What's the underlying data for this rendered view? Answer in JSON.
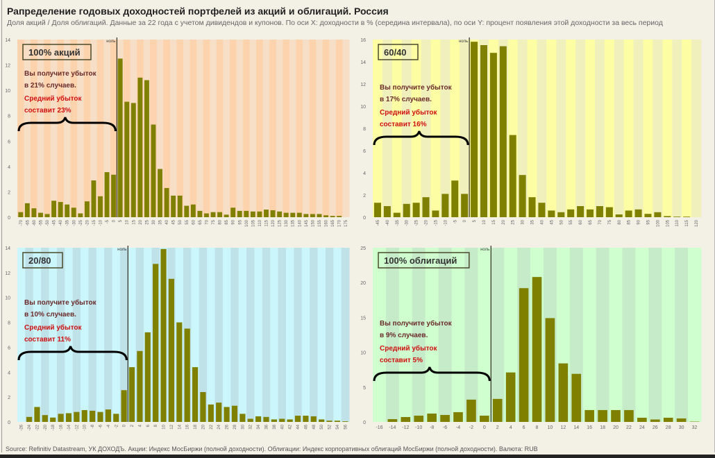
{
  "header": {
    "title": "Рапределение годовых доходностей портфелей из акций и облигаций. Россия",
    "subtitle": "Доля акций / Доля облигаций. Данные за 22 года с учетом дивидендов и купонов. По оси X: доходности в % (середина интервала), по оси Y: процент появления этой доходности за весь период"
  },
  "footer": {
    "source": "Source: Refinitiv Datastream, УК ДОХОДЪ. Акции: Индекс МосБиржи (полной доходности). Облигации: Индекс корпоративных облигаций МосБиржи (полной доходности). Валюта: RUB"
  },
  "colors": {
    "bar": "#808000",
    "zero_line": "#3a3a2a",
    "loss_text": "#6b2a2a",
    "avg_loss_text": "#d01010"
  },
  "chart_data": [
    {
      "type": "bar",
      "panel": "top-left",
      "title": "100% акций",
      "zero_label": "ноль",
      "note_loss": [
        "Вы получите убыток",
        "в 21% случаев."
      ],
      "note_avg": [
        "Средний убыток",
        "составит 23%"
      ],
      "background": [
        "#fcd3ac",
        "#f6dfc6"
      ],
      "ylim": [
        0,
        14
      ],
      "yticks": [
        0,
        2,
        4,
        6,
        8,
        10,
        12,
        14
      ],
      "x_rotated": true,
      "categories": [
        -70,
        -65,
        -60,
        -55,
        -50,
        -45,
        -40,
        -35,
        -30,
        -25,
        -20,
        -15,
        -10,
        -5,
        0,
        5,
        10,
        15,
        20,
        25,
        30,
        35,
        40,
        45,
        50,
        55,
        60,
        65,
        70,
        75,
        80,
        85,
        90,
        95,
        100,
        105,
        110,
        115,
        120,
        125,
        130,
        135,
        140,
        145,
        150,
        155,
        160,
        165,
        170,
        175
      ],
      "values": [
        0.4,
        1.1,
        0.7,
        0.35,
        0.25,
        1.3,
        1.2,
        1.0,
        0.75,
        0.3,
        1.25,
        2.9,
        1.65,
        3.55,
        3.35,
        12.5,
        9.1,
        9.0,
        11.0,
        10.8,
        7.3,
        3.8,
        2.3,
        1.7,
        1.7,
        0.9,
        1.0,
        0.5,
        0.3,
        0.4,
        0.4,
        0.2,
        0.75,
        0.5,
        0.5,
        0.45,
        0.45,
        0.6,
        0.55,
        0.45,
        0.35,
        0.35,
        0.35,
        0.25,
        0.25,
        0.25,
        0.15,
        0.1,
        0.1,
        0.0
      ]
    },
    {
      "type": "bar",
      "panel": "top-right",
      "title": "60/40",
      "zero_label": "ноль",
      "note_loss": [
        "Вы получите убыток",
        "в 17% случаев."
      ],
      "note_avg": [
        "Средний убыток",
        "составит 16%"
      ],
      "background": [
        "#fdfda4",
        "#f0f0bc"
      ],
      "ylim": [
        0,
        16
      ],
      "yticks": [
        0,
        2,
        4,
        6,
        8,
        10,
        12,
        14,
        16
      ],
      "x_rotated": true,
      "categories": [
        -45,
        -40,
        -35,
        -30,
        -25,
        -20,
        -15,
        -10,
        -5,
        0,
        5,
        10,
        15,
        20,
        25,
        30,
        35,
        40,
        45,
        50,
        55,
        60,
        65,
        70,
        75,
        80,
        85,
        90,
        95,
        100,
        105,
        110,
        115,
        120
      ],
      "values": [
        1.3,
        1.0,
        0.4,
        1.2,
        1.3,
        1.8,
        0.6,
        2.1,
        3.3,
        2.1,
        15.8,
        15.5,
        14.8,
        15.4,
        7.4,
        3.8,
        1.8,
        1.3,
        0.6,
        0.45,
        0.7,
        1.0,
        0.7,
        1.0,
        0.9,
        0.25,
        0.6,
        0.7,
        0.3,
        0.45,
        0.1,
        0.05,
        0.05,
        0.0
      ]
    },
    {
      "type": "bar",
      "panel": "bottom-left",
      "title": "20/80",
      "zero_label": "ноль",
      "note_loss": [
        "Вы получите убыток",
        "в 10% случаев."
      ],
      "note_avg": [
        "Средний убыток",
        "составит 11%"
      ],
      "background": [
        "#cbf6fb",
        "#bfe1e8"
      ],
      "ylim": [
        0,
        14
      ],
      "yticks": [
        0,
        2,
        4,
        6,
        8,
        10,
        12,
        14
      ],
      "x_rotated": true,
      "categories": [
        -26,
        -24,
        -22,
        -20,
        -18,
        -16,
        -14,
        -12,
        -10,
        -8,
        -6,
        -4,
        -2,
        0,
        2,
        4,
        6,
        8,
        10,
        12,
        14,
        16,
        18,
        20,
        22,
        24,
        26,
        28,
        30,
        32,
        34,
        36,
        38,
        40,
        42,
        44,
        46,
        48,
        50,
        52,
        54,
        56
      ],
      "values": [
        0.0,
        0.4,
        1.2,
        0.55,
        0.35,
        0.65,
        0.7,
        0.8,
        0.95,
        0.9,
        0.8,
        1.0,
        0.65,
        2.55,
        4.4,
        5.7,
        7.2,
        12.7,
        13.9,
        11.5,
        8.0,
        7.5,
        4.4,
        2.4,
        1.4,
        1.55,
        1.2,
        1.3,
        0.65,
        0.25,
        0.45,
        0.4,
        0.2,
        0.25,
        0.2,
        0.5,
        0.5,
        0.45,
        0.2,
        0.1,
        0.1,
        0.05
      ]
    },
    {
      "type": "bar",
      "panel": "bottom-right",
      "title": "100% облигаций",
      "zero_label": "ноль",
      "note_loss": [
        "Вы получите убыток",
        "в 9% случаев."
      ],
      "note_avg": [
        "Средний убыток",
        "составит 5%"
      ],
      "background": [
        "#cfffcf",
        "#c6ebc8"
      ],
      "ylim": [
        0,
        25
      ],
      "yticks": [
        0,
        5,
        10,
        15,
        20,
        25
      ],
      "x_rotated": false,
      "categories": [
        -16,
        -14,
        -12,
        -10,
        -8,
        -6,
        -4,
        -2,
        0,
        2,
        4,
        6,
        8,
        10,
        12,
        14,
        16,
        18,
        20,
        22,
        24,
        26,
        28,
        30,
        32
      ],
      "values": [
        0.0,
        0.4,
        0.7,
        0.9,
        1.2,
        1.0,
        1.4,
        3.2,
        0.9,
        3.3,
        7.1,
        19.2,
        20.8,
        14.9,
        8.4,
        6.9,
        1.7,
        1.7,
        1.7,
        1.7,
        0.6,
        0.35,
        0.6,
        0.5,
        0.05
      ]
    }
  ]
}
